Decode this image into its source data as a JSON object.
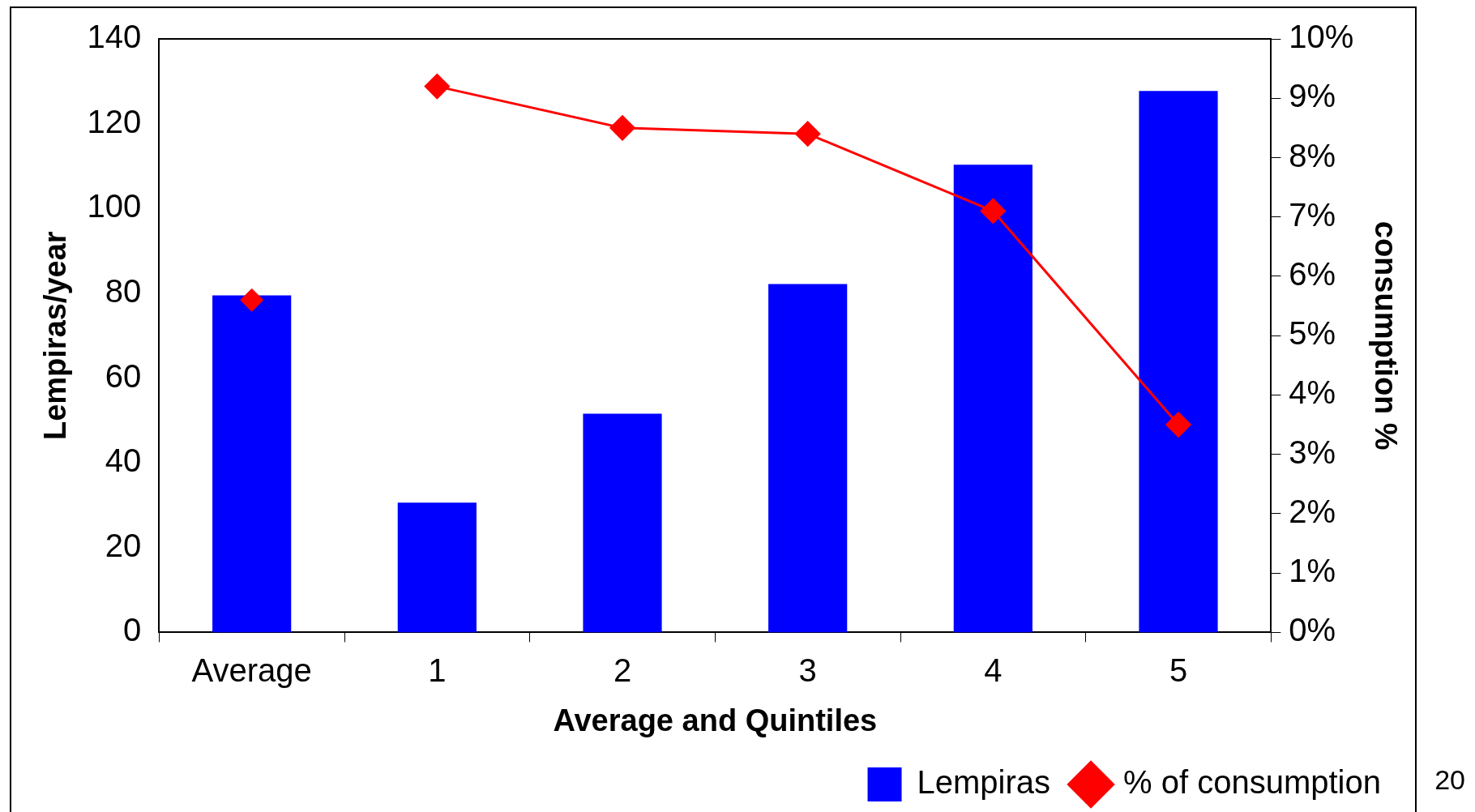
{
  "chart_data": {
    "type": "bar",
    "xlabel": "Average and Quintiles",
    "ylabel": "Lempiras/year",
    "y2label": "consumption %",
    "categories": [
      "Average",
      "1",
      "2",
      "3",
      "4",
      "5"
    ],
    "series": [
      {
        "name": "Lempiras",
        "color": "#0000ff",
        "values": [
          79.5,
          30.6,
          51.6,
          82.2,
          110.3,
          127.7
        ]
      },
      {
        "name": "% of consumption",
        "type": "line",
        "axis": "y2",
        "color": "#ff0000",
        "marker": "diamond",
        "values": [
          null,
          9.2,
          8.5,
          8.4,
          7.1,
          3.5
        ]
      },
      {
        "type": "scatter",
        "axis": "y2",
        "color": "#ff0000",
        "marker": "diamond",
        "x": [
          "Average"
        ],
        "values": [
          5.6
        ]
      }
    ],
    "ylim": [
      0,
      140
    ],
    "yticks": [
      0,
      20,
      40,
      60,
      80,
      100,
      120,
      140
    ],
    "y2lim": [
      0,
      10
    ],
    "y2ticks": [
      {
        "value": 0,
        "label": "0%"
      },
      {
        "value": 1,
        "label": "1%"
      },
      {
        "value": 2,
        "label": "2%"
      },
      {
        "value": 3,
        "label": "3%"
      },
      {
        "value": 4,
        "label": "4%"
      },
      {
        "value": 5,
        "label": "5%"
      },
      {
        "value": 6,
        "label": "6%"
      },
      {
        "value": 7,
        "label": "7%"
      },
      {
        "value": 8,
        "label": "8%"
      },
      {
        "value": 9,
        "label": "9%"
      },
      {
        "value": 10,
        "label": "10%"
      }
    ],
    "grid": false,
    "legend": "bottom right",
    "annotations": [
      "20"
    ]
  }
}
